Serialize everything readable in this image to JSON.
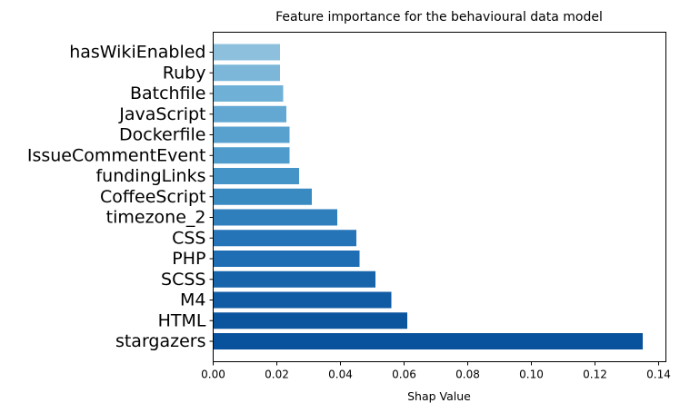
{
  "chart_data": {
    "type": "bar",
    "orientation": "horizontal",
    "title": "Feature importance for the behavioural data model",
    "xlabel": "Shap Value",
    "ylabel": "",
    "xlim": [
      0,
      0.142
    ],
    "x_ticks": [
      "0.00",
      "0.02",
      "0.04",
      "0.06",
      "0.08",
      "0.10",
      "0.12",
      "0.14"
    ],
    "grid": false,
    "categories": [
      "stargazers",
      "HTML",
      "M4",
      "SCSS",
      "PHP",
      "CSS",
      "timezone_2",
      "CoffeeScript",
      "fundingLinks",
      "IssueCommentEvent",
      "Dockerfile",
      "JavaScript",
      "Batchfile",
      "Ruby",
      "hasWikiEnabled"
    ],
    "values": [
      0.135,
      0.061,
      0.056,
      0.051,
      0.046,
      0.045,
      0.039,
      0.031,
      0.027,
      0.024,
      0.024,
      0.023,
      0.022,
      0.021,
      0.021
    ],
    "colors": [
      "#08519c",
      "#0b559f",
      "#105ba4",
      "#1764ab",
      "#1f6eb3",
      "#2474b7",
      "#2f7fbc",
      "#3a8ac2",
      "#4594c7",
      "#4f9bcb",
      "#58a1cf",
      "#63a8d3",
      "#6fb0d6",
      "#7cb7da",
      "#8cc0dd"
    ]
  }
}
